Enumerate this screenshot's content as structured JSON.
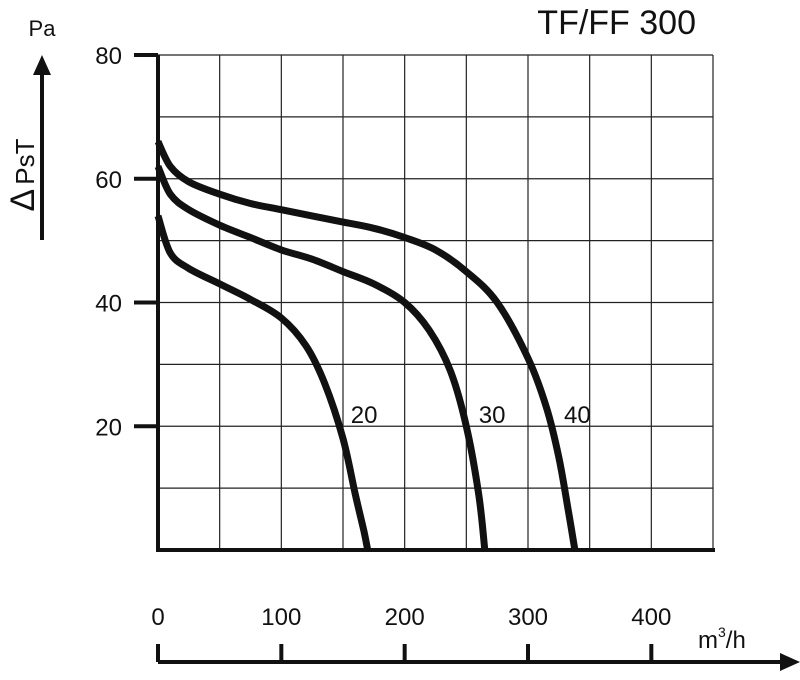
{
  "chart_data": {
    "type": "line",
    "title": "TF/FF 300",
    "ylabel": "Δ PsT",
    "yunit": "Pa",
    "xunit_base": "m",
    "xunit_exp": "3",
    "xunit_tail": "/h",
    "xlim": [
      0,
      450
    ],
    "ylim": [
      0,
      80
    ],
    "x_ticks": [
      "0",
      "100",
      "200",
      "300",
      "400"
    ],
    "y_ticks": [
      "80",
      "60",
      "40",
      "20"
    ],
    "grid": true,
    "series": [
      {
        "name": "20",
        "x": [
          0,
          10,
          25,
          50,
          75,
          100,
          120,
          135,
          150,
          160,
          167,
          170
        ],
        "y": [
          54,
          48,
          45.5,
          43,
          40.5,
          37.5,
          33,
          27,
          18,
          9,
          3,
          0
        ]
      },
      {
        "name": "30",
        "x": [
          0,
          10,
          25,
          50,
          75,
          100,
          125,
          150,
          175,
          200,
          220,
          237,
          250,
          260,
          265
        ],
        "y": [
          62,
          57.5,
          55,
          52.5,
          50.5,
          48.5,
          47,
          45,
          43,
          40,
          35.5,
          29,
          20,
          9,
          0
        ]
      },
      {
        "name": "40",
        "x": [
          0,
          10,
          25,
          50,
          75,
          100,
          125,
          150,
          175,
          200,
          225,
          250,
          275,
          300,
          315,
          325,
          333,
          338
        ],
        "y": [
          66,
          62,
          59.5,
          57.5,
          56,
          55,
          54,
          53,
          52,
          50.5,
          48.5,
          45,
          40,
          31,
          23,
          15,
          6,
          0
        ]
      }
    ]
  }
}
